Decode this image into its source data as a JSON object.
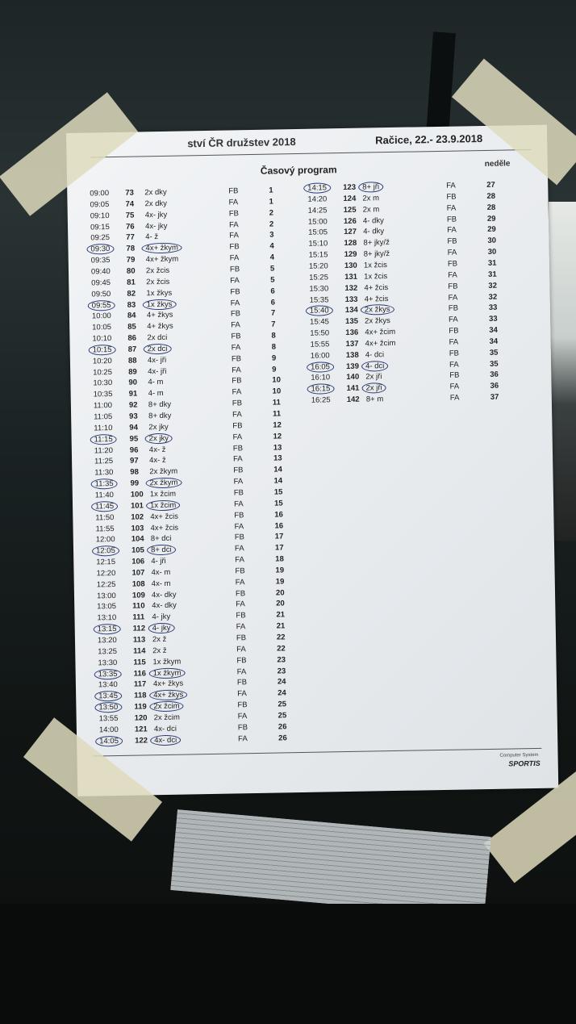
{
  "header": {
    "left": "ství ČR družstev 2018",
    "right": "Račice,  22.- 23.9.2018"
  },
  "title": "Časový program",
  "day": "neděle",
  "footer": {
    "line1": "Computer System",
    "logo": "SPORTIS"
  },
  "colors": {
    "paper": "#eceff1",
    "pen_circle": "#2a3a7a"
  },
  "left_rows": [
    [
      "09:00",
      "73",
      "2x dky",
      "FB",
      "1",
      false
    ],
    [
      "09:05",
      "74",
      "2x dky",
      "FA",
      "1",
      false
    ],
    [
      "09:10",
      "75",
      "4x- jky",
      "FB",
      "2",
      false
    ],
    [
      "09:15",
      "76",
      "4x- jky",
      "FA",
      "2",
      false
    ],
    [
      "09:25",
      "77",
      "4- ž",
      "FA",
      "3",
      false
    ],
    [
      "09:30",
      "78",
      "4x+ žkym",
      "FB",
      "4",
      true
    ],
    [
      "09:35",
      "79",
      "4x+ žkym",
      "FA",
      "4",
      false
    ],
    [
      "09:40",
      "80",
      "2x žcis",
      "FB",
      "5",
      false
    ],
    [
      "09:45",
      "81",
      "2x žcis",
      "FA",
      "5",
      false
    ],
    [
      "09:50",
      "82",
      "1x žkys",
      "FB",
      "6",
      false
    ],
    [
      "09:55",
      "83",
      "1x žkys",
      "FA",
      "6",
      true
    ],
    [
      "10:00",
      "84",
      "4+ žkys",
      "FB",
      "7",
      false
    ],
    [
      "10:05",
      "85",
      "4+ žkys",
      "FA",
      "7",
      false
    ],
    [
      "10:10",
      "86",
      "2x dci",
      "FB",
      "8",
      false
    ],
    [
      "10:15",
      "87",
      "2x dci",
      "FA",
      "8",
      true
    ],
    [
      "10:20",
      "88",
      "4x- jři",
      "FB",
      "9",
      false
    ],
    [
      "10:25",
      "89",
      "4x- jři",
      "FA",
      "9",
      false
    ],
    [
      "10:30",
      "90",
      "4- m",
      "FB",
      "10",
      false
    ],
    [
      "10:35",
      "91",
      "4- m",
      "FA",
      "10",
      false
    ],
    [
      "11:00",
      "92",
      "8+ dky",
      "FB",
      "11",
      false
    ],
    [
      "11:05",
      "93",
      "8+ dky",
      "FA",
      "11",
      false
    ],
    [
      "11:10",
      "94",
      "2x jky",
      "FB",
      "12",
      false
    ],
    [
      "11:15",
      "95",
      "2x jky",
      "FA",
      "12",
      true
    ],
    [
      "11:20",
      "96",
      "4x- ž",
      "FB",
      "13",
      false
    ],
    [
      "11:25",
      "97",
      "4x- ž",
      "FA",
      "13",
      false
    ],
    [
      "11:30",
      "98",
      "2x žkym",
      "FB",
      "14",
      false
    ],
    [
      "11:35",
      "99",
      "2x žkym",
      "FA",
      "14",
      true
    ],
    [
      "11:40",
      "100",
      "1x žcim",
      "FB",
      "15",
      false
    ],
    [
      "11:45",
      "101",
      "1x žcim",
      "FA",
      "15",
      true
    ],
    [
      "11:50",
      "102",
      "4x+ žcis",
      "FB",
      "16",
      false
    ],
    [
      "11:55",
      "103",
      "4x+ žcis",
      "FA",
      "16",
      false
    ],
    [
      "12:00",
      "104",
      "8+ dci",
      "FB",
      "17",
      false
    ],
    [
      "12:05",
      "105",
      "8+ dci",
      "FA",
      "17",
      true
    ],
    [
      "12:15",
      "106",
      "4- jři",
      "FA",
      "18",
      false
    ],
    [
      "12:20",
      "107",
      "4x- m",
      "FB",
      "19",
      false
    ],
    [
      "12:25",
      "108",
      "4x- m",
      "FA",
      "19",
      false
    ],
    [
      "13:00",
      "109",
      "4x- dky",
      "FB",
      "20",
      false
    ],
    [
      "13:05",
      "110",
      "4x- dky",
      "FA",
      "20",
      false
    ],
    [
      "13:10",
      "111",
      "4- jky",
      "FB",
      "21",
      false
    ],
    [
      "13:15",
      "112",
      "4- jky",
      "FA",
      "21",
      true
    ],
    [
      "13:20",
      "113",
      "2x ž",
      "FB",
      "22",
      false
    ],
    [
      "13:25",
      "114",
      "2x ž",
      "FA",
      "22",
      false
    ],
    [
      "13:30",
      "115",
      "1x žkym",
      "FB",
      "23",
      false
    ],
    [
      "13:35",
      "116",
      "1x žkym",
      "FA",
      "23",
      true
    ],
    [
      "13:40",
      "117",
      "4x+ žkys",
      "FB",
      "24",
      false
    ],
    [
      "13:45",
      "118",
      "4x+ žkys",
      "FA",
      "24",
      true
    ],
    [
      "13:50",
      "119",
      "2x žcim",
      "FB",
      "25",
      true
    ],
    [
      "13:55",
      "120",
      "2x žcim",
      "FA",
      "25",
      false
    ],
    [
      "14:00",
      "121",
      "4x- dci",
      "FB",
      "26",
      false
    ],
    [
      "14:05",
      "122",
      "4x- dci",
      "FA",
      "26",
      true
    ]
  ],
  "right_rows": [
    [
      "14:15",
      "123",
      "8+ jři",
      "FA",
      "27",
      true
    ],
    [
      "14:20",
      "124",
      "2x m",
      "FB",
      "28",
      false
    ],
    [
      "14:25",
      "125",
      "2x m",
      "FA",
      "28",
      false
    ],
    [
      "15:00",
      "126",
      "4- dky",
      "FB",
      "29",
      false
    ],
    [
      "15:05",
      "127",
      "4- dky",
      "FA",
      "29",
      false
    ],
    [
      "15:10",
      "128",
      "8+ jky/ž",
      "FB",
      "30",
      false
    ],
    [
      "15:15",
      "129",
      "8+ jky/ž",
      "FA",
      "30",
      false
    ],
    [
      "15:20",
      "130",
      "1x žcis",
      "FB",
      "31",
      false
    ],
    [
      "15:25",
      "131",
      "1x žcis",
      "FA",
      "31",
      false
    ],
    [
      "15:30",
      "132",
      "4+ žcis",
      "FB",
      "32",
      false
    ],
    [
      "15:35",
      "133",
      "4+ žcis",
      "FA",
      "32",
      false
    ],
    [
      "15:40",
      "134",
      "2x žkys",
      "FB",
      "33",
      true
    ],
    [
      "15:45",
      "135",
      "2x žkys",
      "FA",
      "33",
      false
    ],
    [
      "15:50",
      "136",
      "4x+ žcim",
      "FB",
      "34",
      false
    ],
    [
      "15:55",
      "137",
      "4x+ žcim",
      "FA",
      "34",
      false
    ],
    [
      "16:00",
      "138",
      "4- dci",
      "FB",
      "35",
      false
    ],
    [
      "16:05",
      "139",
      "4- dci",
      "FA",
      "35",
      true
    ],
    [
      "16:10",
      "140",
      "2x jři",
      "FB",
      "36",
      false
    ],
    [
      "16:15",
      "141",
      "2x jři",
      "FA",
      "36",
      true
    ],
    [
      "16:25",
      "142",
      "8+ m",
      "FA",
      "37",
      false
    ]
  ]
}
